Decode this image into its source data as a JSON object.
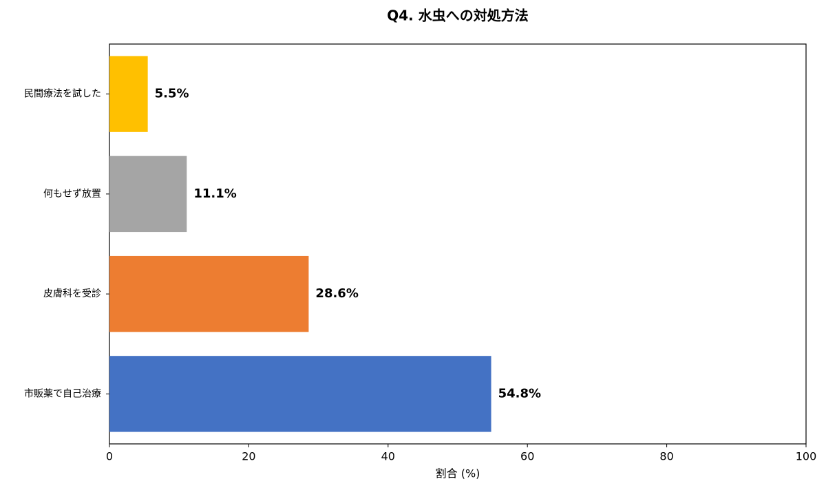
{
  "chart_data": {
    "type": "barh",
    "title": "Q4. 水虫への対処方法",
    "categories": [
      "市販薬で自己治療",
      "皮膚科を受診",
      "何もせず放置",
      "民間療法を試した"
    ],
    "values": [
      54.8,
      28.6,
      11.1,
      5.5
    ],
    "value_labels": [
      "54.8%",
      "28.6%",
      "11.1%",
      "5.5%"
    ],
    "colors": [
      "#4472c4",
      "#ed7d31",
      "#a5a5a5",
      "#ffc000"
    ],
    "xlabel": "割合 (%)",
    "xlim": [
      0,
      100
    ],
    "xticks": [
      0,
      20,
      40,
      60,
      80,
      100
    ],
    "grid": false
  }
}
